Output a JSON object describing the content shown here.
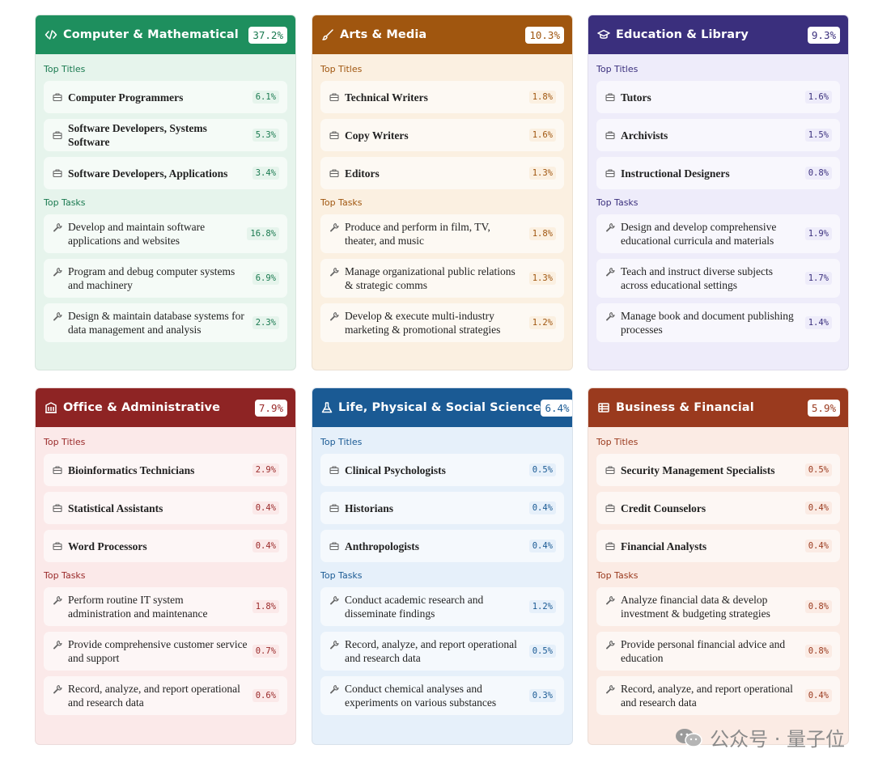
{
  "labels": {
    "top_titles": "Top Titles",
    "top_tasks": "Top Tasks"
  },
  "cards": [
    {
      "id": "computer-mathematical",
      "icon": "code-icon",
      "title": "Computer & Mathematical",
      "pct": "37.2%",
      "header_color": "#1e8f5e",
      "body_color": "#e6f4ec",
      "accent_color": "#1a7a50",
      "titles": [
        {
          "name": "Computer Programmers",
          "pct": "6.1%"
        },
        {
          "name": "Software Developers, Systems Software",
          "pct": "5.3%"
        },
        {
          "name": "Software Developers, Applications",
          "pct": "3.4%"
        }
      ],
      "tasks": [
        {
          "name": "Develop and maintain software applications and websites",
          "pct": "16.8%"
        },
        {
          "name": "Program and debug computer systems and machinery",
          "pct": "6.9%"
        },
        {
          "name": "Design & maintain database systems for data management and analysis",
          "pct": "2.3%"
        }
      ]
    },
    {
      "id": "arts-media",
      "icon": "brush-icon",
      "title": "Arts & Media",
      "pct": "10.3%",
      "header_color": "#a0560f",
      "body_color": "#fbf0e1",
      "accent_color": "#a0560f",
      "titles": [
        {
          "name": "Technical Writers",
          "pct": "1.8%"
        },
        {
          "name": "Copy Writers",
          "pct": "1.6%"
        },
        {
          "name": "Editors",
          "pct": "1.3%"
        }
      ],
      "tasks": [
        {
          "name": "Produce and perform in film, TV, theater, and music",
          "pct": "1.8%"
        },
        {
          "name": "Manage organizational public relations & strategic comms",
          "pct": "1.3%"
        },
        {
          "name": "Develop & execute multi-industry marketing & promotional strategies",
          "pct": "1.2%"
        }
      ]
    },
    {
      "id": "education-library",
      "icon": "graduation-cap-icon",
      "title": "Education & Library",
      "pct": "9.3%",
      "header_color": "#3a2f7d",
      "body_color": "#eeecfa",
      "accent_color": "#3a2f7d",
      "titles": [
        {
          "name": "Tutors",
          "pct": "1.6%"
        },
        {
          "name": "Archivists",
          "pct": "1.5%"
        },
        {
          "name": "Instructional Designers",
          "pct": "0.8%"
        }
      ],
      "tasks": [
        {
          "name": "Design and develop comprehensive educational curricula and materials",
          "pct": "1.9%"
        },
        {
          "name": "Teach and instruct diverse subjects across educational settings",
          "pct": "1.7%"
        },
        {
          "name": "Manage book and document publishing processes",
          "pct": "1.4%"
        }
      ]
    },
    {
      "id": "office-administrative",
      "icon": "building-icon",
      "title": "Office & Administrative",
      "pct": "7.9%",
      "header_color": "#8e2424",
      "body_color": "#fbe9e9",
      "accent_color": "#9a2a2a",
      "titles": [
        {
          "name": "Bioinformatics Technicians",
          "pct": "2.9%"
        },
        {
          "name": "Statistical Assistants",
          "pct": "0.4%"
        },
        {
          "name": "Word Processors",
          "pct": "0.4%"
        }
      ],
      "tasks": [
        {
          "name": "Perform routine IT system administration and maintenance",
          "pct": "1.8%"
        },
        {
          "name": "Provide comprehensive customer service and support",
          "pct": "0.7%"
        },
        {
          "name": "Record, analyze, and report operational and research data",
          "pct": "0.6%"
        }
      ]
    },
    {
      "id": "life-physical-social-science",
      "icon": "flask-icon",
      "title": "Life, Physical & Social Science",
      "pct": "6.4%",
      "header_color": "#1a5a94",
      "body_color": "#e6f0fa",
      "accent_color": "#1a5a94",
      "titles": [
        {
          "name": "Clinical Psychologists",
          "pct": "0.5%"
        },
        {
          "name": "Historians",
          "pct": "0.4%"
        },
        {
          "name": "Anthropologists",
          "pct": "0.4%"
        }
      ],
      "tasks": [
        {
          "name": "Conduct academic research and disseminate findings",
          "pct": "1.2%"
        },
        {
          "name": "Record, analyze, and report operational and research data",
          "pct": "0.5%"
        },
        {
          "name": "Conduct chemical analyses and experiments on various substances",
          "pct": "0.3%"
        }
      ]
    },
    {
      "id": "business-financial",
      "icon": "ledger-icon",
      "title": "Business & Financial",
      "pct": "5.9%",
      "header_color": "#9a3a1e",
      "body_color": "#fbebe4",
      "accent_color": "#9a3a1e",
      "titles": [
        {
          "name": "Security Management Specialists",
          "pct": "0.5%"
        },
        {
          "name": "Credit Counselors",
          "pct": "0.4%"
        },
        {
          "name": "Financial Analysts",
          "pct": "0.4%"
        }
      ],
      "tasks": [
        {
          "name": "Analyze financial data & develop investment & budgeting strategies",
          "pct": "0.8%"
        },
        {
          "name": "Provide personal financial advice and education",
          "pct": "0.8%"
        },
        {
          "name": "Record, analyze, and report operational and research data",
          "pct": "0.4%"
        }
      ]
    }
  ],
  "watermark": {
    "text": "公众号 · 量子位",
    "icon": "wechat-icon"
  }
}
